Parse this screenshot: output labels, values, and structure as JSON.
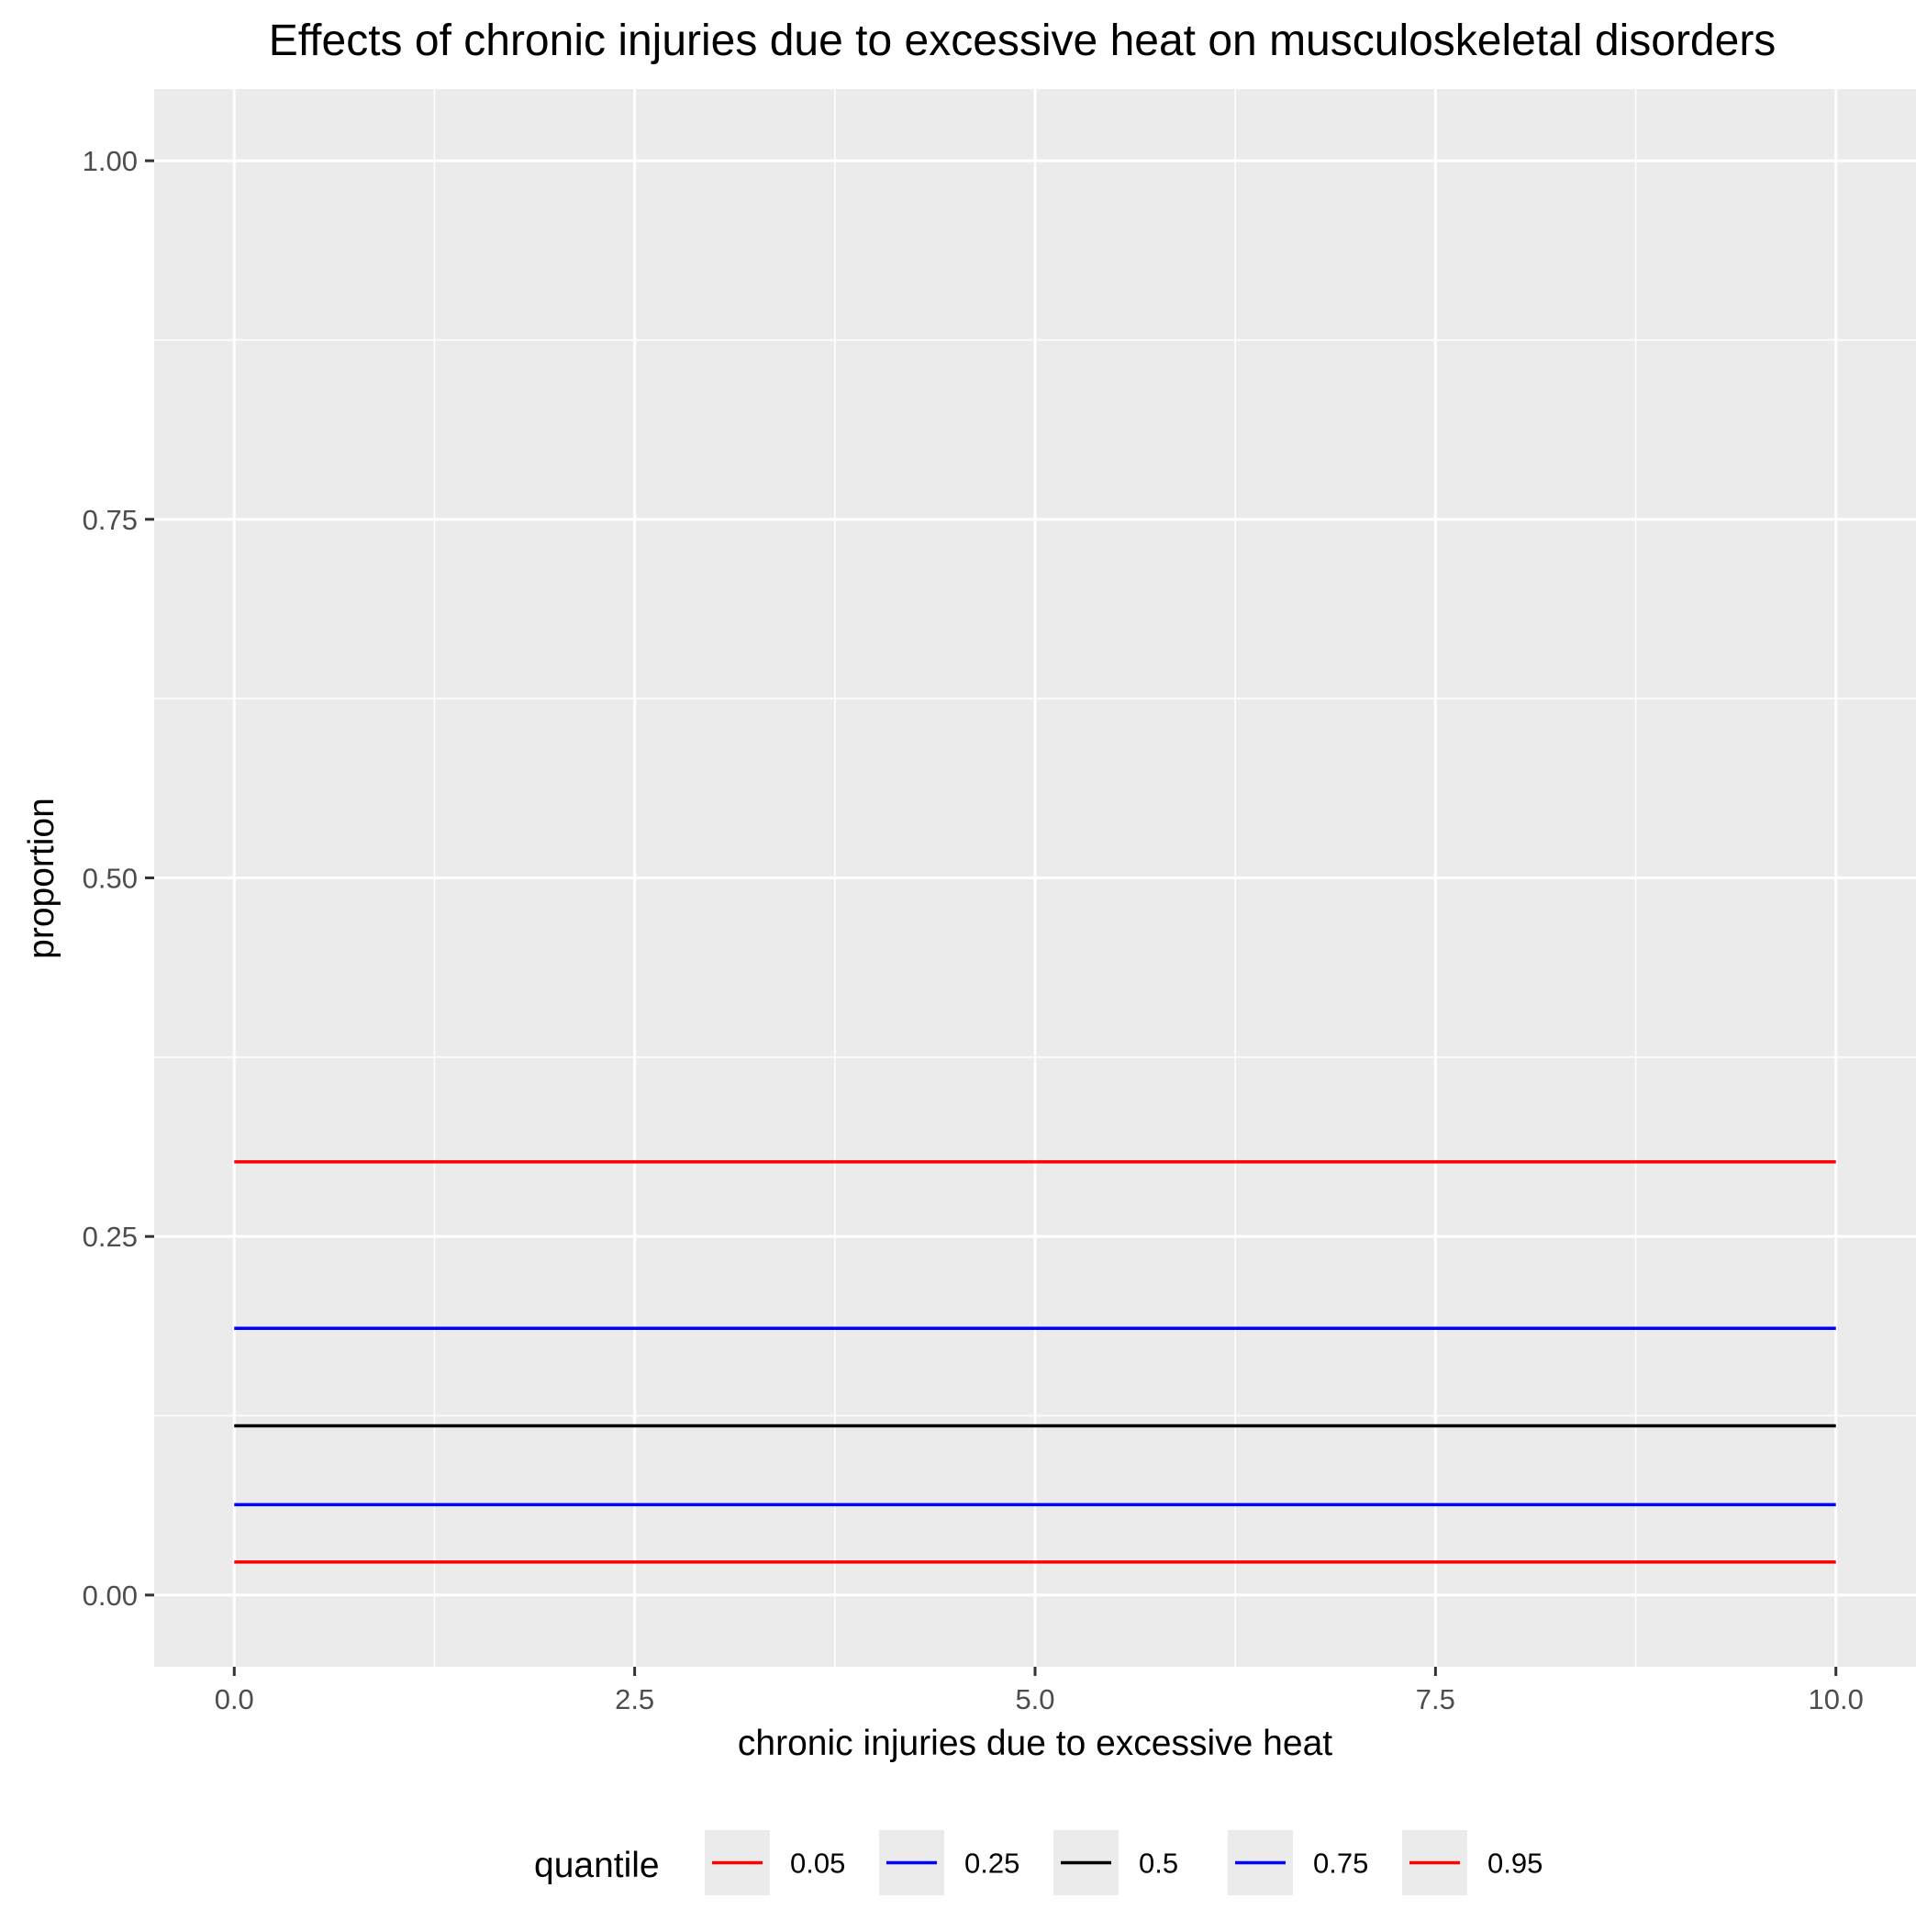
{
  "chart_data": {
    "type": "line",
    "title": "Effects of chronic injuries due to excessive heat on musculoskeletal disorders",
    "xlabel": "chronic injuries due to excessive heat",
    "ylabel": "proportion",
    "xlim": [
      -0.5,
      10.5
    ],
    "ylim": [
      -0.05,
      1.05
    ],
    "x_ticks": [
      0,
      2.5,
      5,
      7.5,
      10
    ],
    "x_tick_labels": [
      "0.0",
      "2.5",
      "5.0",
      "7.5",
      "10.0"
    ],
    "y_ticks": [
      0,
      0.25,
      0.5,
      0.75,
      1
    ],
    "y_tick_labels": [
      "0.00",
      "0.25",
      "0.50",
      "0.75",
      "1.00"
    ],
    "grid": true,
    "background": "#ebebeb",
    "legend": {
      "title": "quantile",
      "position": "bottom"
    },
    "x": [
      0,
      10
    ],
    "series": [
      {
        "name": "0.05",
        "color": "#ff0000",
        "values": [
          0.023,
          0.023
        ]
      },
      {
        "name": "0.25",
        "color": "#0000ff",
        "values": [
          0.063,
          0.063
        ]
      },
      {
        "name": "0.5",
        "color": "#000000",
        "values": [
          0.118,
          0.118
        ]
      },
      {
        "name": "0.75",
        "color": "#0000ff",
        "values": [
          0.186,
          0.186
        ]
      },
      {
        "name": "0.95",
        "color": "#ff0000",
        "values": [
          0.302,
          0.302
        ]
      }
    ]
  }
}
